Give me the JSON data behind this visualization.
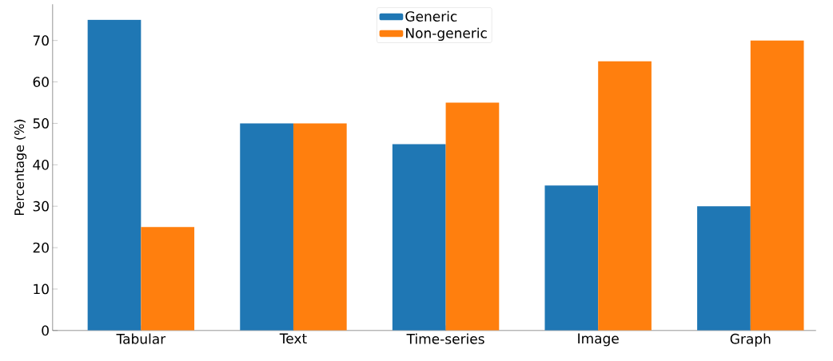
{
  "chart_data": {
    "type": "bar",
    "ylabel": "Percentage (%)",
    "categories": [
      "Tabular",
      "Text",
      "Time-series",
      "Image",
      "Graph"
    ],
    "series": [
      {
        "name": "Generic",
        "color": "#1f77b4",
        "values": [
          75,
          50,
          45,
          35,
          30
        ]
      },
      {
        "name": "Non-generic",
        "color": "#ff7f0e",
        "values": [
          25,
          50,
          55,
          65,
          70
        ]
      }
    ],
    "ylim": [
      0,
      78.75
    ],
    "yticks": [
      0,
      10,
      20,
      30,
      40,
      50,
      60,
      70
    ],
    "legend": "top",
    "grid": false
  }
}
